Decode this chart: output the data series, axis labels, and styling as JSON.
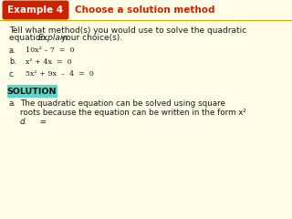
{
  "background_color": "#fffde8",
  "header_bg": "#cc2200",
  "header_text": "Example 4",
  "header_subtitle": "Choose a solution method",
  "header_subtitle_color": "#cc2200",
  "header_text_color": "#ffffff",
  "body_line1": "Tell what method(s) you would use to solve the quadratic",
  "body_line2a": "equation. ",
  "body_line2b": "Explain",
  "body_line2c": " your choice(s).",
  "eq_a_label": "a.",
  "eq_a": "10x² – 7  =  0",
  "eq_b_label": "b.",
  "eq_b": "x² + 4x  =  0",
  "eq_c_label": "c.",
  "eq_c": "5x² + 9x  –  4  =  0",
  "solution_bg": "#5dd8c8",
  "solution_text": "SOLUTION",
  "sol_label": "a.",
  "sol_line1": "The quadratic equation can be solved using square",
  "sol_line2": "roots because the equation can be written in the form x²",
  "sol_line3": "d.",
  "sol_line3b": "     ="
}
